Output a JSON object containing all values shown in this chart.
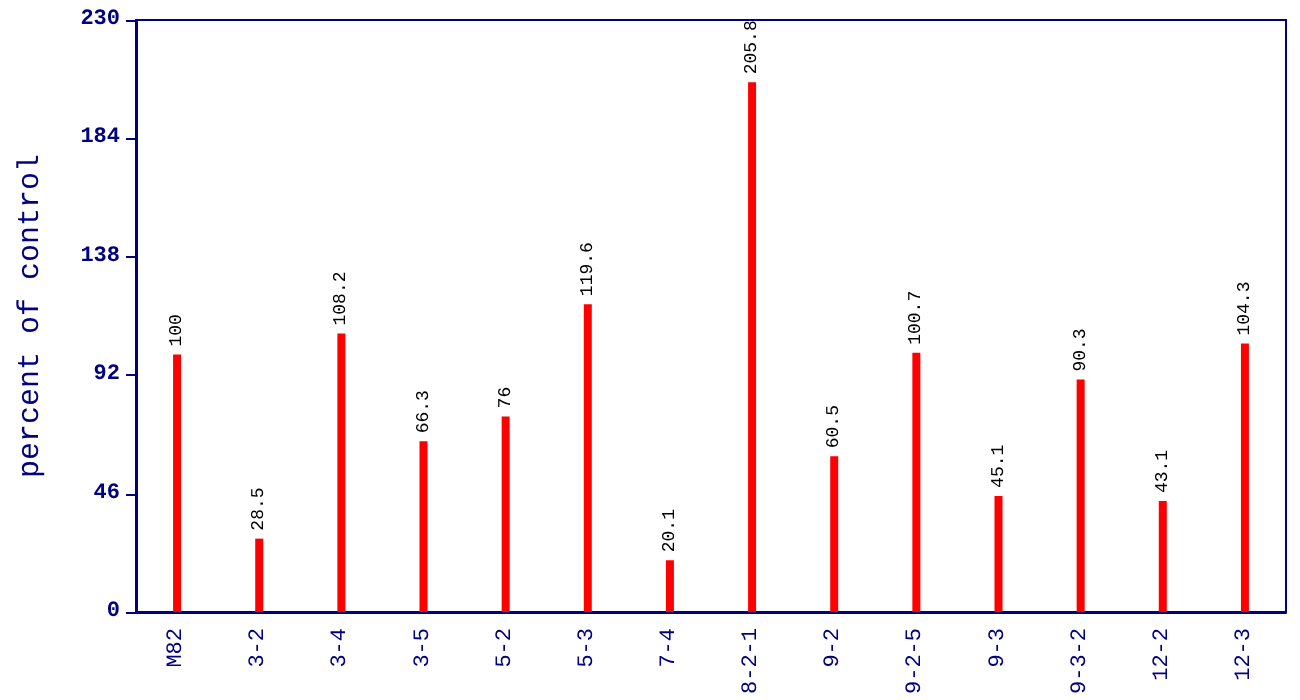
{
  "chart_data": {
    "type": "bar",
    "ylabel": "percent of control",
    "categories": [
      "M82",
      "3-2",
      "3-4",
      "3-5",
      "5-2",
      "5-3",
      "7-4",
      "8-2-1",
      "9-2",
      "9-2-5",
      "9-3",
      "9-3-2",
      "12-2",
      "12-3"
    ],
    "values": [
      100,
      28.5,
      108.2,
      66.3,
      76,
      119.6,
      20.1,
      205.8,
      60.5,
      100.7,
      45.1,
      90.3,
      43.1,
      104.3
    ],
    "color": "#ff0000",
    "ylim": [
      0,
      230
    ],
    "yticks": [
      0,
      46,
      92,
      138,
      184,
      230
    ],
    "grid": false,
    "data_labels": true
  }
}
